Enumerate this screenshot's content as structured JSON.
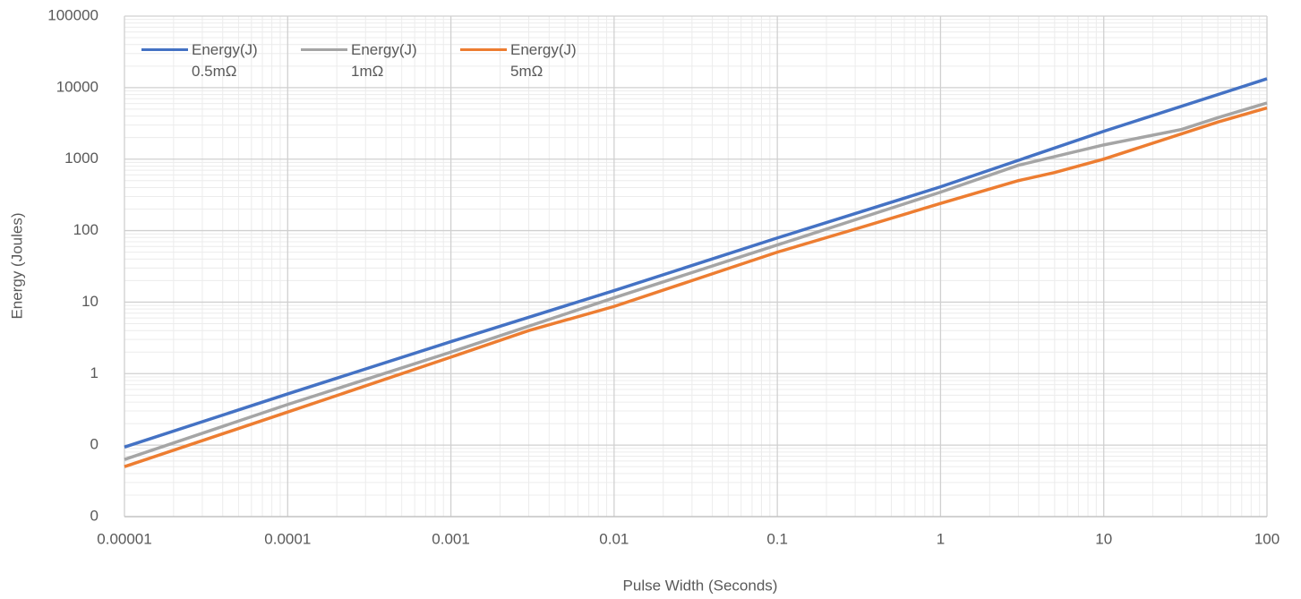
{
  "chart_data": {
    "type": "line",
    "x_label": "Pulse Width (Seconds)",
    "y_label": "Energy (Joules)",
    "log_x": true,
    "log_y": true,
    "grid": true,
    "legend": "top-left",
    "xlim": [
      1e-05,
      100
    ],
    "xticks": [
      1e-05,
      0.0001,
      0.001,
      0.01,
      0.1,
      1,
      10,
      100
    ],
    "ylim": [
      0.01,
      100000
    ],
    "yticks": [
      {
        "value": 0.01,
        "label": "0"
      },
      {
        "value": 0.1,
        "label": "0"
      },
      1,
      10,
      100,
      1000,
      10000,
      100000
    ],
    "series": [
      {
        "name": "Energy(J) 0.5mΩ",
        "color": "#4472c4",
        "x": [
          1e-05,
          0.0001,
          0.001,
          0.01,
          0.1,
          1,
          10,
          100
        ],
        "values": [
          0.094,
          0.52,
          2.8,
          14.5,
          79,
          410,
          2450,
          13300
        ]
      },
      {
        "name": "Energy(J) 1mΩ",
        "color": "#a5a5a5",
        "x": [
          1e-05,
          0.0001,
          0.001,
          0.01,
          0.1,
          1,
          3,
          10,
          30,
          50,
          100
        ],
        "values": [
          0.063,
          0.37,
          2.0,
          11.5,
          63,
          345,
          820,
          1580,
          2600,
          3800,
          6100
        ]
      },
      {
        "name": "Energy(J) 5mΩ",
        "color": "#ed7d31",
        "x": [
          1e-05,
          0.0001,
          0.001,
          0.003,
          0.01,
          0.03,
          0.1,
          0.3,
          1,
          3,
          5,
          10,
          50,
          100
        ],
        "values": [
          0.05,
          0.29,
          1.7,
          4,
          8.7,
          20,
          50,
          105,
          240,
          500,
          650,
          1000,
          3300,
          5200
        ]
      }
    ]
  }
}
